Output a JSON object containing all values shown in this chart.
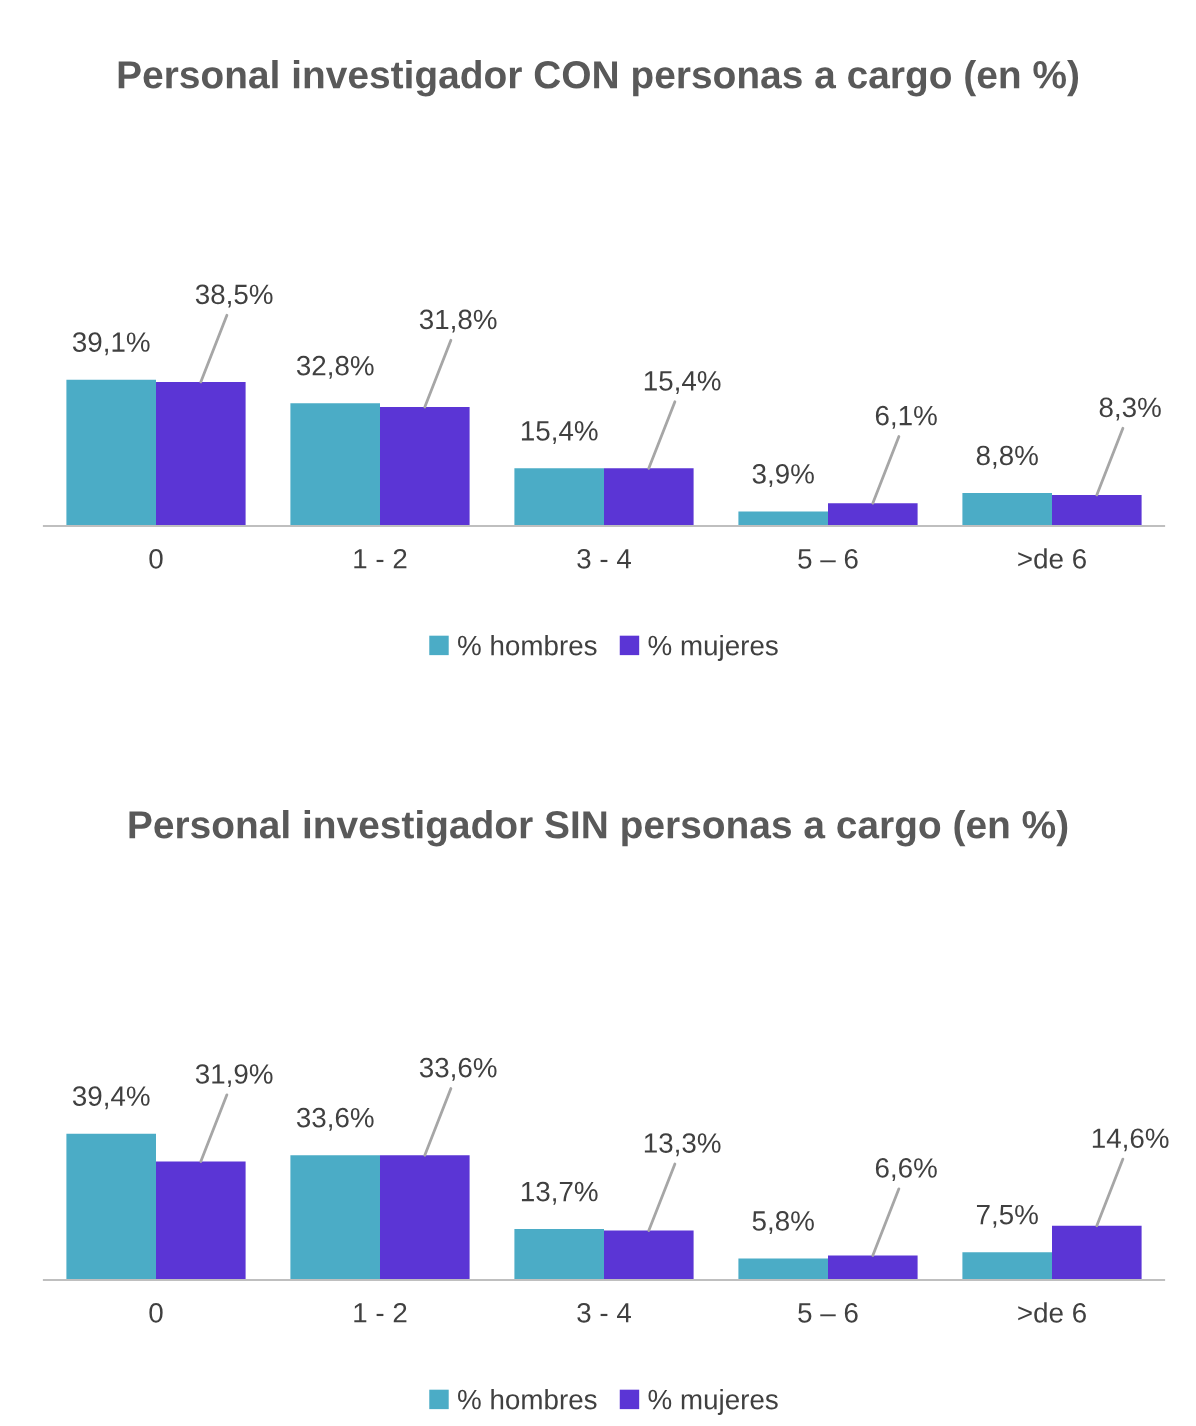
{
  "chart_data": [
    {
      "type": "bar",
      "title": "Personal investigador CON personas a cargo (en %)",
      "categories": [
        "0",
        "1 - 2",
        "3 - 4",
        "5 – 6",
        ">de 6"
      ],
      "series": [
        {
          "name": "% hombres",
          "color": "#4bacc6",
          "values": [
            39.1,
            32.8,
            15.4,
            3.9,
            8.8
          ],
          "value_labels": [
            "39,1%",
            "32,8%",
            "15,4%",
            "3,9%",
            "8,8%"
          ]
        },
        {
          "name": "% mujeres",
          "color": "#5b35d5",
          "values": [
            38.5,
            31.8,
            15.4,
            6.1,
            8.3
          ],
          "value_labels": [
            "38,5%",
            "31,8%",
            "15,4%",
            "6,1%",
            "8,3%"
          ]
        }
      ],
      "legend": "bottom",
      "tick_labels": "x",
      "grid": false
    },
    {
      "type": "bar",
      "title": "Personal investigador SIN personas a cargo (en %)",
      "categories": [
        "0",
        "1 - 2",
        "3 - 4",
        "5 – 6",
        ">de 6"
      ],
      "series": [
        {
          "name": "% hombres",
          "color": "#4bacc6",
          "values": [
            39.4,
            33.6,
            13.7,
            5.8,
            7.5
          ],
          "value_labels": [
            "39,4%",
            "33,6%",
            "13,7%",
            "5,8%",
            "7,5%"
          ]
        },
        {
          "name": "% mujeres",
          "color": "#5b35d5",
          "values": [
            31.9,
            33.6,
            13.3,
            6.6,
            14.6
          ],
          "value_labels": [
            "31,9%",
            "33,6%",
            "13,3%",
            "6,6%",
            "14,6%"
          ]
        }
      ],
      "legend": "bottom",
      "tick_labels": "x",
      "grid": false
    }
  ]
}
